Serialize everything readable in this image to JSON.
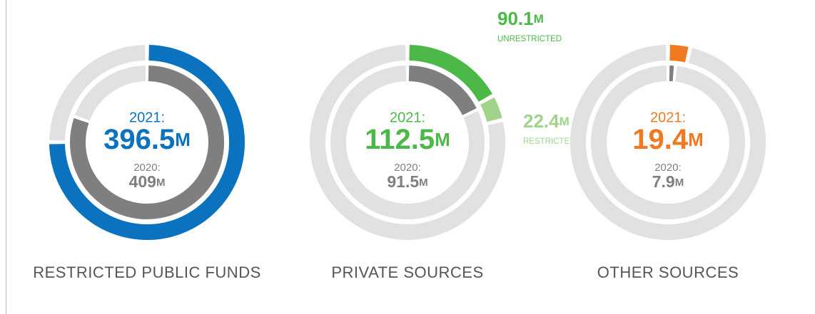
{
  "chart_data": [
    {
      "type": "donut",
      "title": "RESTRICTED PUBLIC FUNDS",
      "unit": "M",
      "series": [
        {
          "name": "2021:",
          "color": "#0a72bf",
          "total": 396.5,
          "values": [
            396.5
          ],
          "colors": [
            "#0a72bf"
          ]
        },
        {
          "name": "2020:",
          "color": "#7f7f80",
          "total": 409,
          "values": [
            409
          ],
          "colors": [
            "#7f7f80"
          ]
        }
      ]
    },
    {
      "type": "donut",
      "title": "PRIVATE SOURCES",
      "unit": "M",
      "series": [
        {
          "name": "2021:",
          "color": "#4cb848",
          "total": 112.5,
          "values": [
            90.1,
            22.4
          ],
          "colors": [
            "#4cb848",
            "#9fd48a"
          ],
          "labels": [
            "UNRESTRICTED",
            "RESTRICTED"
          ]
        },
        {
          "name": "2020:",
          "color": "#7f7f80",
          "total": 91.5,
          "values": [
            91.5
          ],
          "colors": [
            "#7f7f80"
          ]
        }
      ]
    },
    {
      "type": "donut",
      "title": "OTHER SOURCES",
      "unit": "M",
      "series": [
        {
          "name": "2021:",
          "color": "#f07a22",
          "total": 19.4,
          "values": [
            19.4
          ],
          "colors": [
            "#f07a22"
          ]
        },
        {
          "name": "2020:",
          "color": "#7f7f80",
          "total": 7.9,
          "values": [
            7.9
          ],
          "colors": [
            "#7f7f80"
          ]
        }
      ]
    }
  ]
}
